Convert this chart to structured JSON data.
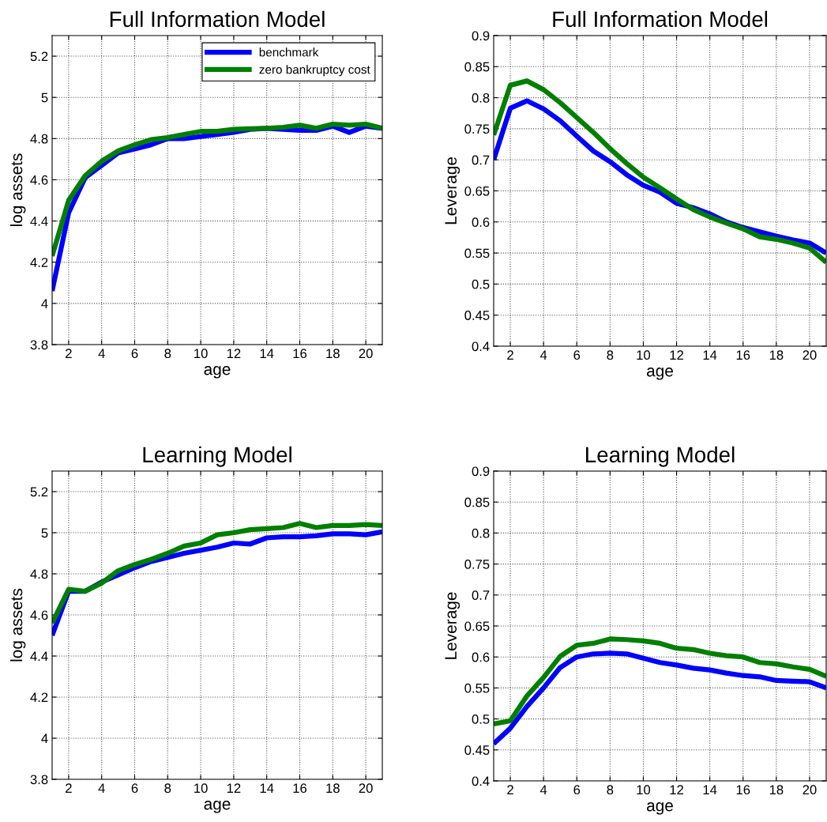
{
  "chart_data": [
    {
      "type": "line",
      "title": "Full Information Model",
      "xlabel": "age",
      "ylabel": "log assets",
      "x": [
        1,
        2,
        3,
        4,
        5,
        6,
        7,
        8,
        9,
        10,
        11,
        12,
        13,
        14,
        15,
        16,
        17,
        18,
        19,
        20,
        21
      ],
      "xlim": [
        1,
        21
      ],
      "xticks": [
        2,
        4,
        6,
        8,
        10,
        12,
        14,
        16,
        18,
        20
      ],
      "ylim": [
        3.8,
        5.3
      ],
      "yticks": [
        3.8,
        4,
        4.2,
        4.4,
        4.6,
        4.8,
        5,
        5.2
      ],
      "grid": true,
      "legend": "top right",
      "line_style": "solid",
      "series": [
        {
          "name": "benchmark",
          "color": "#0000ff",
          "values": [
            4.06,
            4.44,
            4.61,
            4.67,
            4.73,
            4.75,
            4.77,
            4.8,
            4.8,
            4.81,
            4.82,
            4.83,
            4.845,
            4.85,
            4.845,
            4.84,
            4.84,
            4.86,
            4.83,
            4.86,
            4.85
          ]
        },
        {
          "name": "zero bankruptcy cost",
          "color": "#007f00",
          "values": [
            4.23,
            4.5,
            4.62,
            4.69,
            4.74,
            4.77,
            4.795,
            4.805,
            4.82,
            4.835,
            4.835,
            4.845,
            4.848,
            4.85,
            4.855,
            4.865,
            4.85,
            4.87,
            4.865,
            4.87,
            4.85
          ]
        }
      ]
    },
    {
      "type": "line",
      "title": "Full Information Model",
      "xlabel": "age",
      "ylabel": "Leverage",
      "x": [
        1,
        2,
        3,
        4,
        5,
        6,
        7,
        8,
        9,
        10,
        11,
        12,
        13,
        14,
        15,
        16,
        17,
        18,
        19,
        20,
        21
      ],
      "xlim": [
        1,
        21
      ],
      "xticks": [
        2,
        4,
        6,
        8,
        10,
        12,
        14,
        16,
        18,
        20
      ],
      "ylim": [
        0.4,
        0.9
      ],
      "yticks": [
        0.4,
        0.45,
        0.5,
        0.55,
        0.6,
        0.65,
        0.7,
        0.75,
        0.8,
        0.85,
        0.9
      ],
      "grid": true,
      "line_style": "solid",
      "series": [
        {
          "color": "#0000ff",
          "values": [
            0.7,
            0.783,
            0.795,
            0.782,
            0.763,
            0.738,
            0.714,
            0.697,
            0.676,
            0.659,
            0.648,
            0.63,
            0.623,
            0.613,
            0.6,
            0.591,
            0.584,
            0.577,
            0.571,
            0.566,
            0.55
          ]
        },
        {
          "color": "#007f00",
          "values": [
            0.74,
            0.82,
            0.827,
            0.813,
            0.792,
            0.768,
            0.744,
            0.718,
            0.694,
            0.672,
            0.655,
            0.637,
            0.62,
            0.608,
            0.598,
            0.589,
            0.576,
            0.572,
            0.566,
            0.558,
            0.535
          ]
        }
      ]
    },
    {
      "type": "line",
      "title": "Learning Model",
      "xlabel": "age",
      "ylabel": "log assets",
      "x": [
        1,
        2,
        3,
        4,
        5,
        6,
        7,
        8,
        9,
        10,
        11,
        12,
        13,
        14,
        15,
        16,
        17,
        18,
        19,
        20,
        21
      ],
      "xlim": [
        1,
        21
      ],
      "xticks": [
        2,
        4,
        6,
        8,
        10,
        12,
        14,
        16,
        18,
        20
      ],
      "ylim": [
        3.8,
        5.3
      ],
      "yticks": [
        3.8,
        4,
        4.2,
        4.4,
        4.6,
        4.8,
        5,
        5.2
      ],
      "grid": true,
      "line_style": "solid",
      "series": [
        {
          "color": "#0000ff",
          "values": [
            4.5,
            4.715,
            4.715,
            4.76,
            4.795,
            4.83,
            4.86,
            4.88,
            4.9,
            4.915,
            4.93,
            4.95,
            4.945,
            4.975,
            4.98,
            4.98,
            4.985,
            4.995,
            4.995,
            4.99,
            5.005
          ]
        },
        {
          "color": "#007f00",
          "values": [
            4.56,
            4.725,
            4.715,
            4.755,
            4.815,
            4.845,
            4.87,
            4.9,
            4.935,
            4.95,
            4.99,
            5.0,
            5.015,
            5.02,
            5.025,
            5.045,
            5.025,
            5.035,
            5.035,
            5.04,
            5.035
          ]
        }
      ]
    },
    {
      "type": "line",
      "title": "Learning Model",
      "xlabel": "age",
      "ylabel": "Leverage",
      "x": [
        1,
        2,
        3,
        4,
        5,
        6,
        7,
        8,
        9,
        10,
        11,
        12,
        13,
        14,
        15,
        16,
        17,
        18,
        19,
        20,
        21
      ],
      "xlim": [
        1,
        21
      ],
      "xticks": [
        2,
        4,
        6,
        8,
        10,
        12,
        14,
        16,
        18,
        20
      ],
      "ylim": [
        0.4,
        0.9
      ],
      "yticks": [
        0.4,
        0.45,
        0.5,
        0.55,
        0.6,
        0.65,
        0.7,
        0.75,
        0.8,
        0.85,
        0.9
      ],
      "grid": true,
      "line_style": "solid",
      "series": [
        {
          "color": "#0000ff",
          "values": [
            0.46,
            0.485,
            0.52,
            0.55,
            0.583,
            0.6,
            0.605,
            0.606,
            0.605,
            0.598,
            0.591,
            0.587,
            0.582,
            0.579,
            0.574,
            0.57,
            0.568,
            0.562,
            0.561,
            0.56,
            0.55
          ]
        },
        {
          "color": "#007f00",
          "values": [
            0.492,
            0.497,
            0.537,
            0.567,
            0.601,
            0.619,
            0.622,
            0.629,
            0.628,
            0.626,
            0.622,
            0.614,
            0.612,
            0.606,
            0.602,
            0.6,
            0.591,
            0.589,
            0.584,
            0.58,
            0.569
          ]
        }
      ]
    }
  ]
}
